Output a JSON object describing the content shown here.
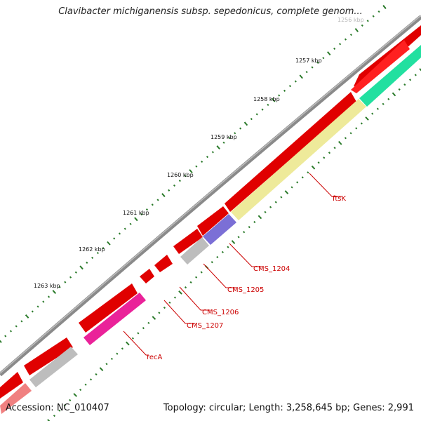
{
  "title": "Clavibacter michiganensis subsp. sepedonicus, complete genom...",
  "footer": {
    "accession_label": "Accession: NC_010407",
    "topology_label": "Topology: circular; Length: 3,258,645 bp; Genes: 2,991"
  },
  "colors": {
    "backbone": "#8a8a8a",
    "cds_forward": "#e00000",
    "tick_major": "#2a7a2a",
    "tick_minor": "#2a7a2a",
    "label_line": "#cc0000",
    "ftsK": "#eeea9a",
    "CMS_1204": "#7b6fd6",
    "CMS_1205": "#bdbdbd",
    "recA": "#ea2299",
    "grey_gene": "#bdbdbd",
    "teal_gene": "#22e0a0",
    "pink_gene": "#f08080"
  },
  "tick_labels": [
    {
      "text": "1256 kbp",
      "faded": true
    },
    {
      "text": "1257 kbp",
      "faded": false
    },
    {
      "text": "1258 kbp",
      "faded": false
    },
    {
      "text": "1259 kbp",
      "faded": false
    },
    {
      "text": "1260 kbp",
      "faded": false
    },
    {
      "text": "1261 kbp",
      "faded": false
    },
    {
      "text": "1262 kbp",
      "faded": false
    },
    {
      "text": "1263 kbp",
      "faded": false
    }
  ],
  "gene_labels": {
    "ftsK": "ftsK",
    "CMS_1204": "CMS_1204",
    "CMS_1205": "CMS_1205",
    "CMS_1206": "CMS_1206",
    "CMS_1207": "CMS_1207",
    "recA": "recA"
  }
}
